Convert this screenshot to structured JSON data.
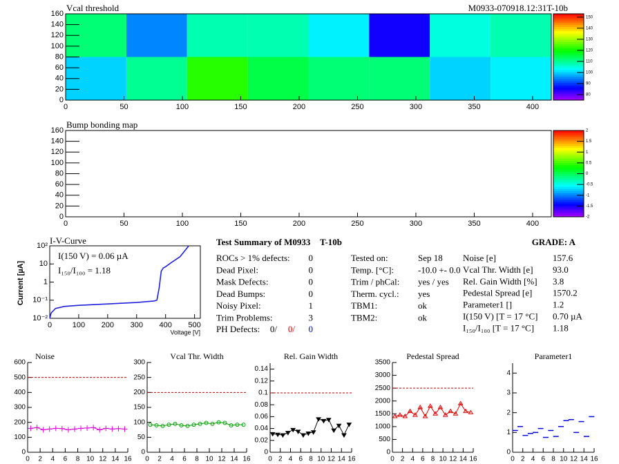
{
  "chart_data": [
    {
      "type": "heatmap",
      "title": "Vcal threshold",
      "subtitle": "M0933-070918.12:31T-10b",
      "xlim": [
        0,
        416
      ],
      "ylim": [
        0,
        160
      ],
      "xticks": [
        0,
        50,
        100,
        150,
        200,
        250,
        300,
        350,
        400
      ],
      "yticks": [
        0,
        20,
        40,
        60,
        80,
        100,
        120,
        140,
        160
      ],
      "xbins": [
        0,
        52,
        104,
        156,
        208,
        260,
        312,
        364,
        416
      ],
      "ybins": [
        0,
        80,
        160
      ],
      "z": [
        [
          100,
          110,
          122,
          115,
          112,
          112,
          100,
          102
        ],
        [
          112,
          95,
          108,
          108,
          102,
          85,
          105,
          108
        ]
      ],
      "zlim": [
        75,
        153
      ],
      "zticks": [
        80,
        90,
        100,
        110,
        120,
        130,
        140,
        150
      ],
      "frame": true
    },
    {
      "type": "heatmap",
      "title": "Bump bonding map",
      "xlim": [
        0,
        416
      ],
      "ylim": [
        0,
        160
      ],
      "xticks": [
        0,
        50,
        100,
        150,
        200,
        250,
        300,
        350,
        400
      ],
      "yticks": [
        0,
        20,
        40,
        60,
        80,
        100,
        120,
        140,
        160
      ],
      "zlim": [
        -2,
        2
      ],
      "zticks": [
        -2,
        -1.5,
        -1,
        -0.5,
        0,
        0.5,
        1,
        1.5,
        2
      ],
      "frame": true
    },
    {
      "type": "line",
      "title": "I-V-Curve",
      "xlabel": "Voltage [V]",
      "ylabel": "Current [µA]",
      "log_y": true,
      "color": "#1f1fe0",
      "annotations": [
        "I(150 V) = 0.06 µA",
        "I₁₅₀/I₁₀₀ =  1.18"
      ],
      "xlim": [
        0,
        520
      ],
      "ylim": [
        0.01,
        100
      ],
      "xticks": [
        0,
        100,
        200,
        300,
        400,
        500
      ],
      "yticks": [
        {
          "value": 0.01,
          "label": "10⁻²"
        },
        {
          "value": 0.1,
          "label": "10⁻¹"
        },
        {
          "value": 1,
          "label": "1"
        },
        {
          "value": 10,
          "label": "10"
        },
        {
          "value": 100,
          "label": "10²"
        }
      ],
      "x": [
        0,
        5,
        20,
        50,
        100,
        200,
        300,
        360,
        370,
        378,
        385,
        392,
        400,
        420,
        450,
        480
      ],
      "values": [
        0.01,
        0.02,
        0.035,
        0.045,
        0.052,
        0.062,
        0.075,
        0.09,
        0.1,
        0.5,
        4,
        6,
        7,
        12,
        25,
        100
      ],
      "frame": true
    },
    {
      "type": "line",
      "title": "Noise",
      "color": "#e000e0",
      "marker": "cross",
      "threshold": 500,
      "threshold_color": "#c00000",
      "xlim": [
        0,
        16
      ],
      "ylim": [
        0,
        600
      ],
      "xticks": [
        0,
        2,
        4,
        6,
        8,
        10,
        12,
        14,
        16
      ],
      "yticks": [
        0,
        100,
        200,
        300,
        400,
        500,
        600
      ],
      "x": [
        0.5,
        1.5,
        2.5,
        3.5,
        4.5,
        5.5,
        6.5,
        7.5,
        8.5,
        9.5,
        10.5,
        11.5,
        12.5,
        13.5,
        14.5,
        15.5
      ],
      "values": [
        160,
        165,
        150,
        155,
        160,
        158,
        150,
        155,
        160,
        162,
        165,
        150,
        160,
        155,
        158,
        155
      ]
    },
    {
      "type": "line",
      "title": "Vcal Thr. Width",
      "color": "#00a000",
      "marker": "circle",
      "threshold": 200,
      "threshold_color": "#c00000",
      "xlim": [
        0,
        16
      ],
      "ylim": [
        0,
        300
      ],
      "xticks": [
        0,
        2,
        4,
        6,
        8,
        10,
        12,
        14,
        16
      ],
      "yticks": [
        0,
        50,
        100,
        150,
        200,
        250,
        300
      ],
      "x": [
        0.5,
        1.5,
        2.5,
        3.5,
        4.5,
        5.5,
        6.5,
        7.5,
        8.5,
        9.5,
        10.5,
        11.5,
        12.5,
        13.5,
        14.5,
        15.5
      ],
      "values": [
        92,
        90,
        88,
        92,
        95,
        90,
        88,
        92,
        95,
        98,
        95,
        100,
        98,
        90,
        92,
        92
      ]
    },
    {
      "type": "line",
      "title": "Rel. Gain Width",
      "color": "#000000",
      "marker": "tri-down",
      "threshold": 0.1,
      "threshold_color": "#c00000",
      "xlim": [
        0,
        16
      ],
      "ylim": [
        0,
        0.15
      ],
      "xticks": [
        0,
        2,
        4,
        6,
        8,
        10,
        12,
        14,
        16
      ],
      "yticks": [
        0,
        0.02,
        0.04,
        0.06,
        0.08,
        0.1,
        0.12,
        0.14
      ],
      "x": [
        0.5,
        1.5,
        2.5,
        3.5,
        4.5,
        5.5,
        6.5,
        7.5,
        8.5,
        9.5,
        10.5,
        11.5,
        12.5,
        13.5,
        14.5,
        15.5
      ],
      "values": [
        0.031,
        0.03,
        0.029,
        0.033,
        0.038,
        0.035,
        0.029,
        0.032,
        0.034,
        0.056,
        0.053,
        0.055,
        0.037,
        0.045,
        0.029,
        0.047
      ]
    },
    {
      "type": "line",
      "title": "Pedestal Spread",
      "color": "#e00000",
      "marker": "tri-up",
      "threshold": 2500,
      "threshold_color": "#c00000",
      "xlim": [
        0,
        16
      ],
      "ylim": [
        0,
        3500
      ],
      "xticks": [
        0,
        2,
        4,
        6,
        8,
        10,
        12,
        14,
        16
      ],
      "yticks": [
        0,
        500,
        1000,
        1500,
        2000,
        2500,
        3000,
        3500
      ],
      "x": [
        0.5,
        1.5,
        2.5,
        3.5,
        4.5,
        5.5,
        6.5,
        7.5,
        8.5,
        9.5,
        10.5,
        11.5,
        12.5,
        13.5,
        14.5,
        15.5
      ],
      "values": [
        1400,
        1450,
        1400,
        1600,
        1450,
        1750,
        1400,
        1800,
        1500,
        1750,
        1450,
        1600,
        1500,
        1900,
        1600,
        1550
      ]
    },
    {
      "type": "scatter",
      "title": "Parameter1",
      "color": "#0000e0",
      "marker": "dash",
      "xlim": [
        0,
        16
      ],
      "ylim": [
        0,
        4.5
      ],
      "xticks": [
        0,
        2,
        4,
        6,
        8,
        10,
        12,
        14,
        16
      ],
      "yticks": [
        0,
        1,
        2,
        3,
        4
      ],
      "x": [
        0.5,
        1.5,
        2.5,
        3.5,
        4.5,
        5.5,
        6.5,
        7.5,
        8.5,
        9.5,
        10.5,
        11.5,
        12.5,
        13.5,
        14.5,
        15.5
      ],
      "values": [
        1.1,
        1.3,
        0.85,
        0.95,
        1.0,
        1.2,
        0.75,
        1.1,
        0.8,
        1.3,
        1.6,
        1.65,
        1.0,
        1.55,
        0.8,
        1.8
      ]
    }
  ],
  "summary": {
    "title": "Test Summary of M0933",
    "tag": "T-10b",
    "grade": "GRADE:  A",
    "left": [
      [
        "ROCs > 1% defects:",
        "0"
      ],
      [
        "Dead Pixel:",
        "0"
      ],
      [
        "Mask Defects:",
        "0"
      ],
      [
        "Dead Bumps:",
        "0"
      ],
      [
        "Noisy Pixel:",
        "1"
      ],
      [
        "Trim Problems:",
        "3"
      ]
    ],
    "ph_label": "PH Defects:",
    "ph_values": [
      "0/",
      "0/",
      "0"
    ],
    "ph_colors": [
      "#000000",
      "#e00000",
      "#0000d0"
    ],
    "middle": [
      [
        "Tested on:",
        "Sep 18"
      ],
      [
        "Temp. [°C]:",
        "-10.0 +- 0.0"
      ],
      [
        "Trim / phCal:",
        "yes / yes"
      ],
      [
        "Therm. cycl.:",
        "yes"
      ],
      [
        "TBM1:",
        "ok"
      ],
      [
        "TBM2:",
        "ok"
      ]
    ],
    "right": [
      [
        "Noise [e]",
        "157.6"
      ],
      [
        "Vcal Thr. Width [e]",
        "93.0"
      ],
      [
        "Rel. Gain Width [%]",
        "3.8"
      ],
      [
        "Pedestal Spread [e]",
        "1570.2"
      ],
      [
        "Parameter1 []",
        "1.2"
      ],
      [
        "I(150 V) [T = 17 °C]",
        "0.70 µA"
      ],
      [
        "I₁₅₀/I₁₀₀  [T = 17 °C]",
        "1.18"
      ]
    ]
  }
}
